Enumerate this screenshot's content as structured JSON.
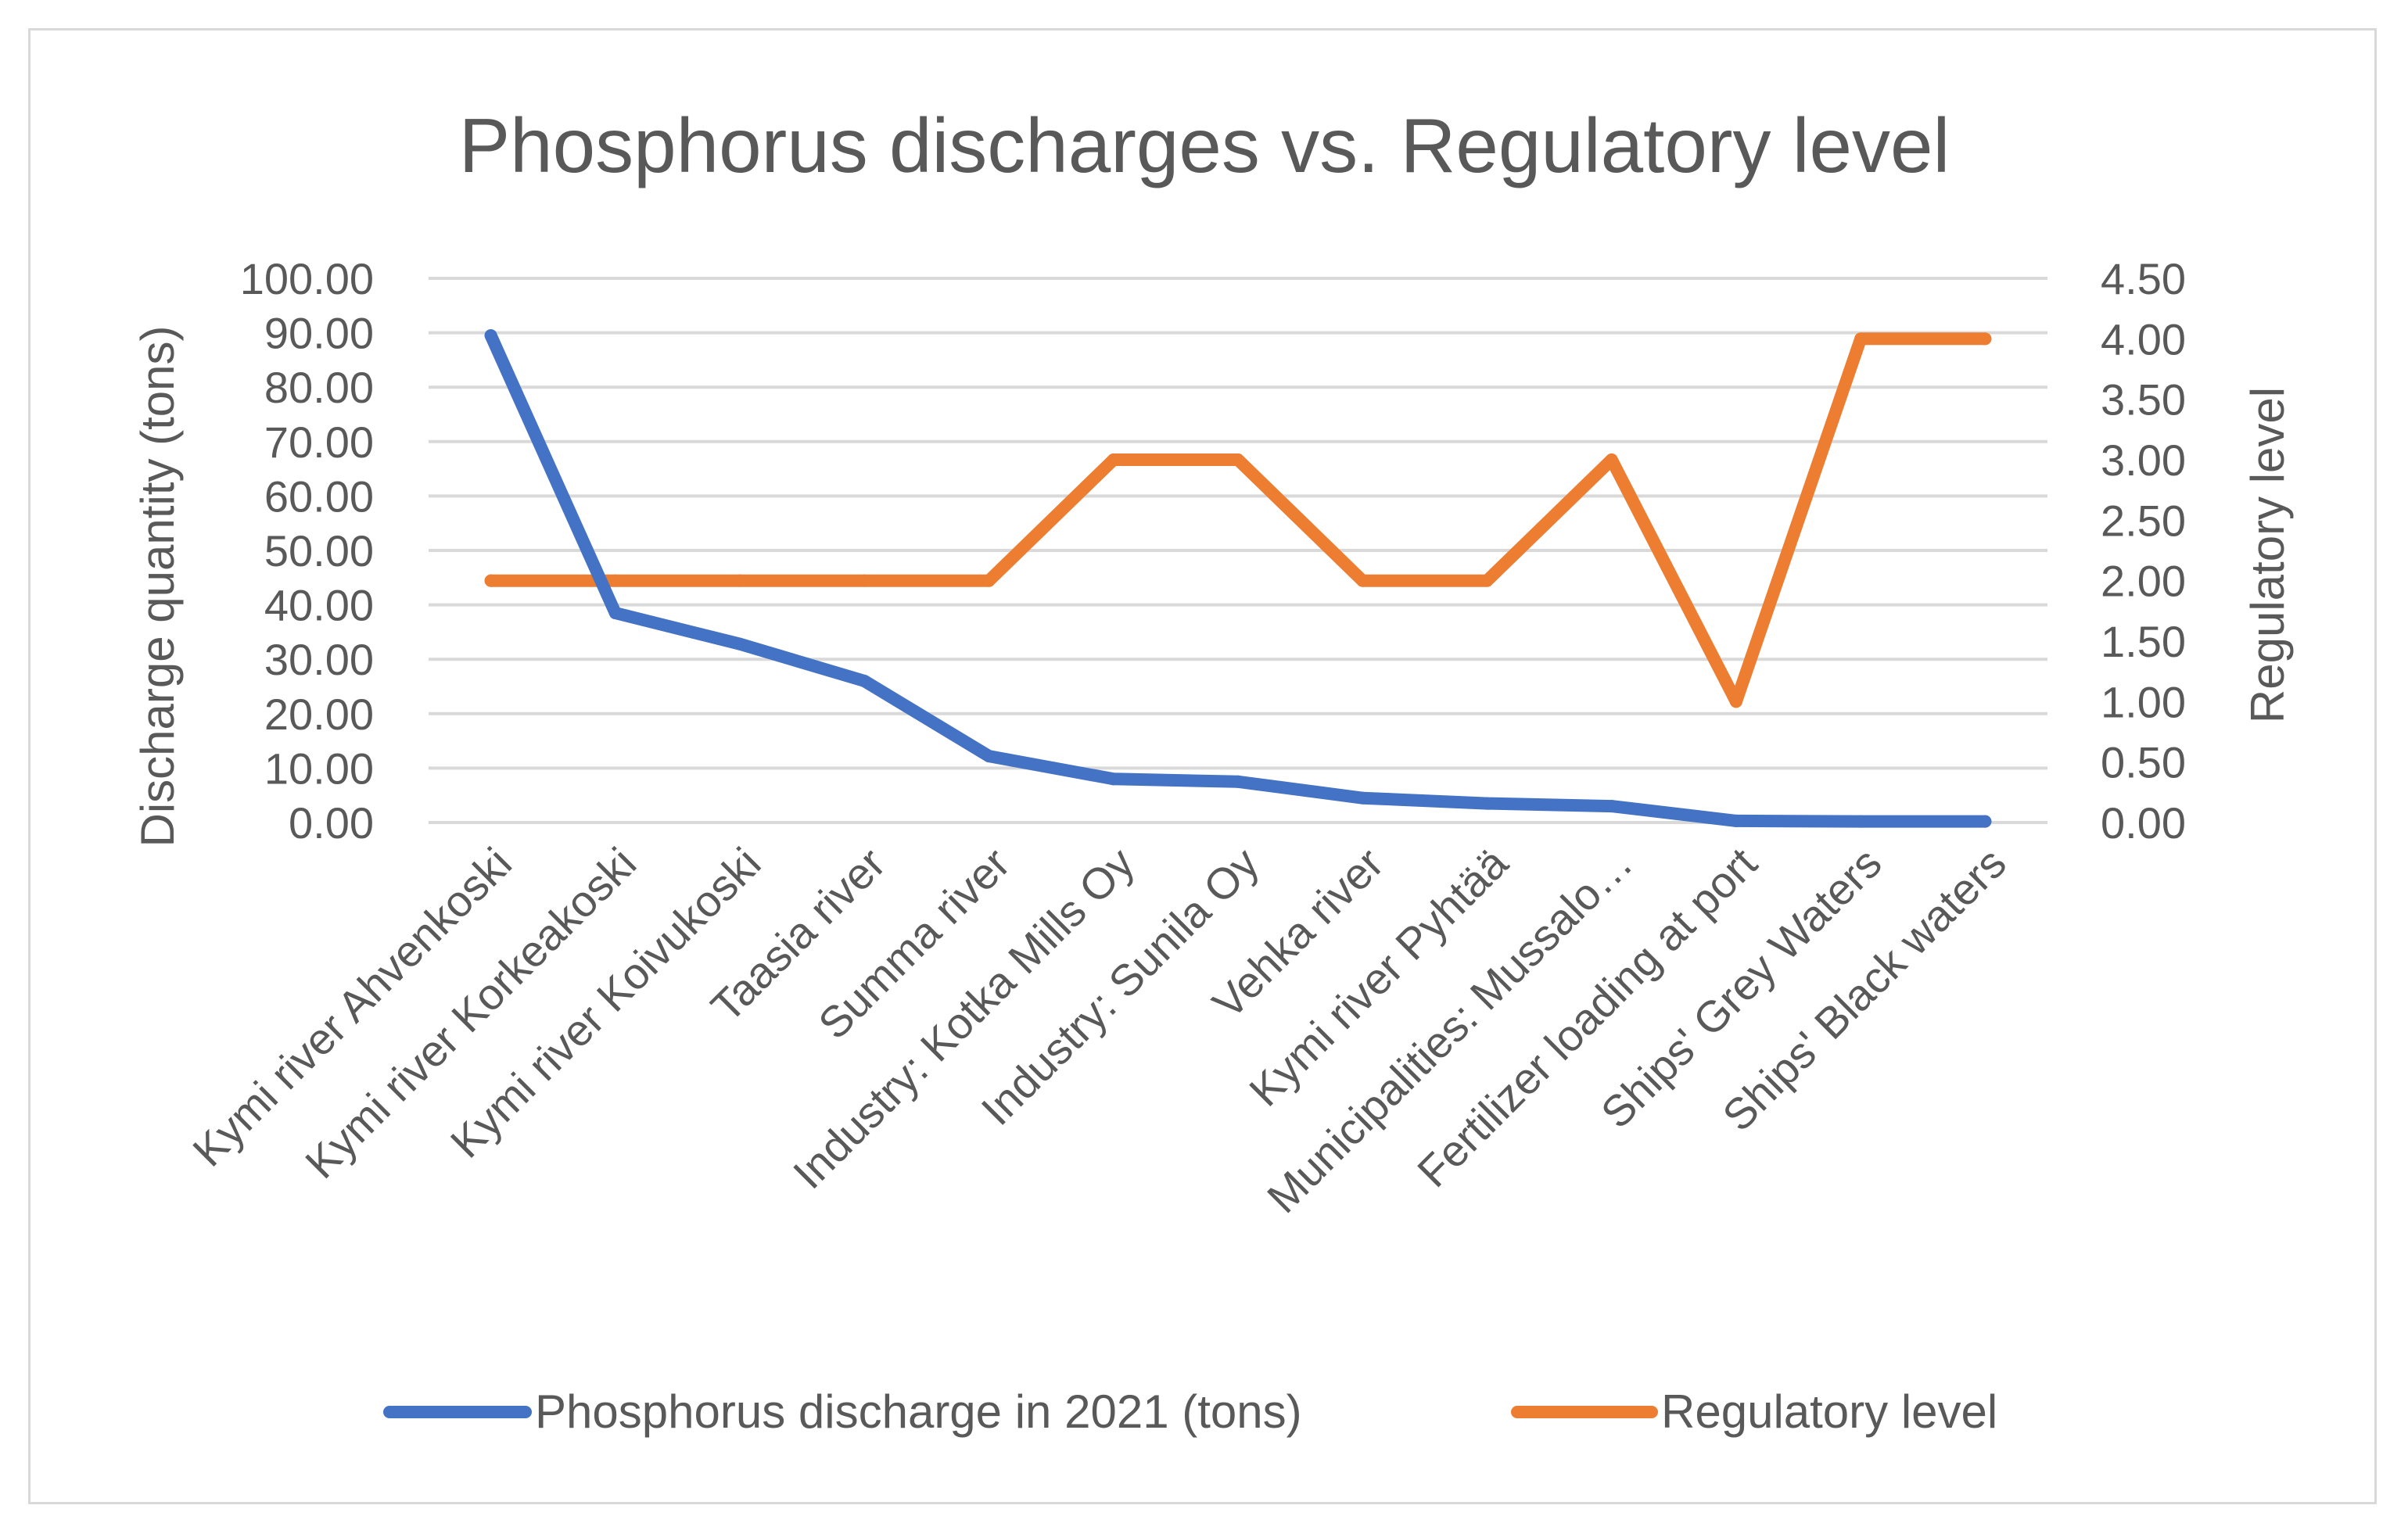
{
  "chart_data": {
    "type": "line",
    "title": "Phosphorus discharges vs. Regulatory level",
    "categories": [
      "Kymi river Ahvenkoski",
      "Kymi river Korkeakoski",
      "Kymi river Koivukoski",
      "Taasia river",
      "Summa river",
      "Industry: Kotka Mills Oy",
      "Industry: Sunila Oy",
      "Vehka river",
      "Kymi river Pyhtää",
      "Municipalities: Mussalo…",
      "Fertilizer loading at port",
      "Ships' Grey Waters",
      "Ships' Black waters"
    ],
    "y_axis": {
      "label": "Discharge quantity (tons)",
      "ylim": [
        0,
        100
      ],
      "ticks": [
        "0.00",
        "10.00",
        "20.00",
        "30.00",
        "40.00",
        "50.00",
        "60.00",
        "70.00",
        "80.00",
        "90.00",
        "100.00"
      ]
    },
    "y2_axis": {
      "label": "Regulatory level",
      "ylim": [
        0,
        4.5
      ],
      "ticks": [
        "0.00",
        "0.50",
        "1.00",
        "1.50",
        "2.00",
        "2.50",
        "3.00",
        "3.50",
        "4.00",
        "4.50"
      ]
    },
    "series": [
      {
        "name": "Phosphorus discharge in 2021 (tons)",
        "axis": "left",
        "color": "#4472c4",
        "values": [
          89.5,
          38.5,
          32.8,
          26.0,
          12.2,
          8.0,
          7.5,
          4.5,
          3.5,
          3.0,
          0.3,
          0.2,
          0.2
        ]
      },
      {
        "name": "Regulatory level",
        "axis": "right",
        "color": "#ed7d31",
        "values": [
          2,
          2,
          2,
          2,
          2,
          3,
          3,
          2,
          2,
          3,
          1,
          4,
          4
        ]
      }
    ],
    "grid": true,
    "legend_position": "bottom"
  }
}
